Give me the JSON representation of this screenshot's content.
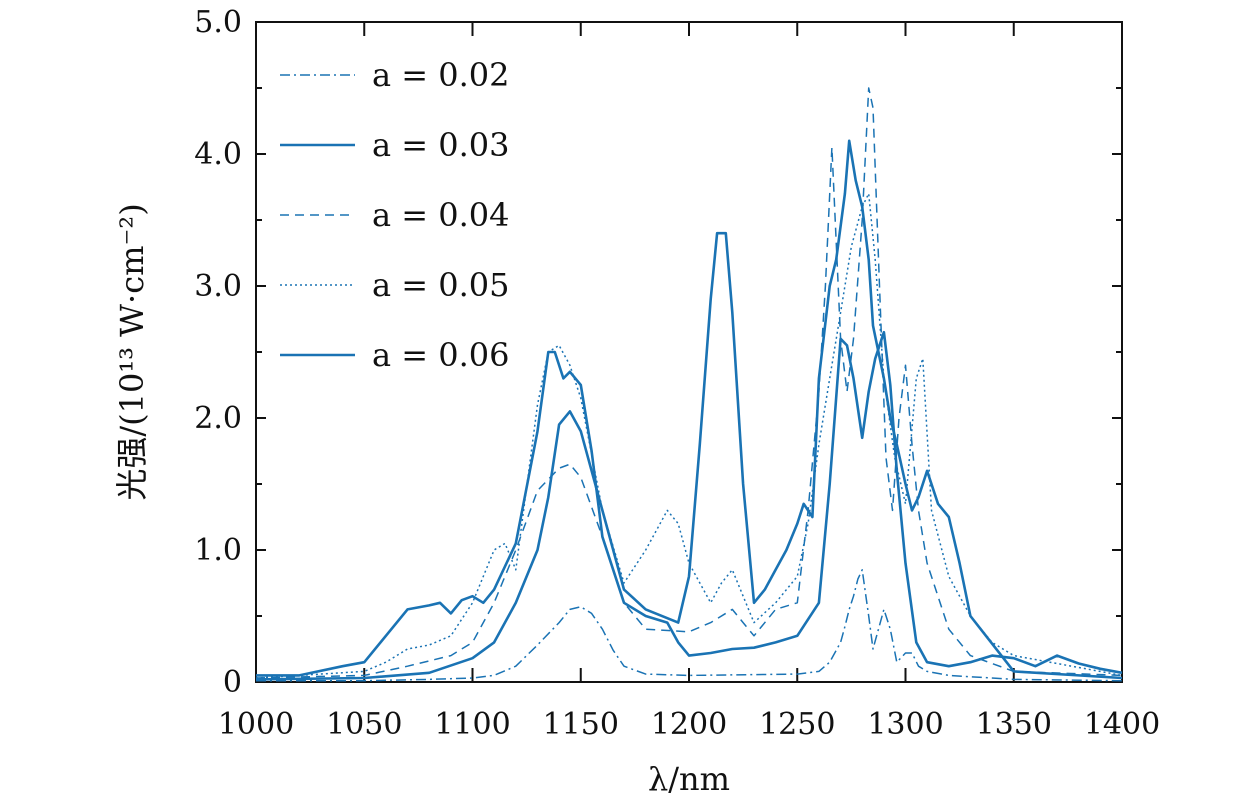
{
  "chart_data": {
    "type": "line",
    "xlabel": "λ/nm",
    "ylabel": "光强/(10¹³ W·cm⁻²)",
    "xlim": [
      1000,
      1400
    ],
    "ylim": [
      0,
      5
    ],
    "x_ticks": [
      1000,
      1050,
      1100,
      1150,
      1200,
      1250,
      1300,
      1350,
      1400
    ],
    "x_tick_labels": [
      "1000",
      "1050",
      "1100",
      "1150",
      "1200",
      "1250",
      "1300",
      "1350",
      "1400"
    ],
    "y_ticks": [
      0,
      1,
      2,
      3,
      4,
      5
    ],
    "y_tick_labels": [
      "0",
      "1.0",
      "2.0",
      "3.0",
      "4.0",
      "5.0"
    ],
    "grid": false,
    "legend_position": "top-left",
    "line_color": "#1a73b4",
    "series": [
      {
        "name": "a = 0.02",
        "style": "dash-dot",
        "x": [
          1000,
          1050,
          1080,
          1100,
          1110,
          1120,
          1130,
          1140,
          1145,
          1150,
          1155,
          1160,
          1165,
          1170,
          1180,
          1200,
          1250,
          1260,
          1265,
          1270,
          1272,
          1274,
          1276,
          1278,
          1280,
          1283,
          1285,
          1290,
          1293,
          1296,
          1300,
          1303,
          1306,
          1310,
          1320,
          1350,
          1400
        ],
        "y": [
          0.01,
          0.01,
          0.02,
          0.03,
          0.05,
          0.12,
          0.28,
          0.45,
          0.55,
          0.57,
          0.52,
          0.4,
          0.24,
          0.12,
          0.06,
          0.05,
          0.06,
          0.08,
          0.15,
          0.3,
          0.42,
          0.55,
          0.65,
          0.78,
          0.85,
          0.5,
          0.25,
          0.55,
          0.4,
          0.15,
          0.22,
          0.22,
          0.12,
          0.08,
          0.05,
          0.02,
          0.01
        ]
      },
      {
        "name": "a = 0.03",
        "style": "solid",
        "x": [
          1000,
          1050,
          1080,
          1100,
          1110,
          1120,
          1130,
          1135,
          1140,
          1145,
          1150,
          1160,
          1170,
          1180,
          1195,
          1200,
          1205,
          1210,
          1213,
          1217,
          1220,
          1225,
          1230,
          1235,
          1240,
          1245,
          1250,
          1253,
          1257,
          1260,
          1265,
          1268,
          1272,
          1274,
          1277,
          1280,
          1283,
          1285,
          1290,
          1293,
          1296,
          1300,
          1303,
          1306,
          1310,
          1315,
          1320,
          1325,
          1330,
          1350,
          1400
        ],
        "y": [
          0.02,
          0.03,
          0.07,
          0.18,
          0.3,
          0.6,
          1.0,
          1.4,
          1.95,
          2.05,
          1.9,
          1.3,
          0.7,
          0.55,
          0.45,
          0.8,
          1.8,
          2.9,
          3.4,
          3.4,
          2.8,
          1.5,
          0.6,
          0.7,
          0.85,
          1.0,
          1.2,
          1.35,
          1.25,
          2.3,
          3.0,
          3.2,
          3.7,
          4.1,
          3.8,
          3.6,
          3.2,
          2.7,
          2.3,
          2.0,
          1.8,
          1.5,
          1.3,
          1.4,
          1.6,
          1.35,
          1.25,
          0.9,
          0.5,
          0.08,
          0.03
        ]
      },
      {
        "name": "a = 0.04",
        "style": "dashed",
        "x": [
          1000,
          1050,
          1070,
          1090,
          1100,
          1110,
          1120,
          1130,
          1140,
          1145,
          1150,
          1160,
          1170,
          1180,
          1200,
          1210,
          1220,
          1225,
          1230,
          1240,
          1250,
          1255,
          1260,
          1263,
          1266,
          1270,
          1273,
          1276,
          1280,
          1283,
          1285,
          1288,
          1291,
          1294,
          1297,
          1300,
          1303,
          1306,
          1310,
          1320,
          1330,
          1350,
          1400
        ],
        "y": [
          0.03,
          0.05,
          0.12,
          0.2,
          0.3,
          0.6,
          1.0,
          1.45,
          1.62,
          1.65,
          1.55,
          1.1,
          0.6,
          0.4,
          0.38,
          0.45,
          0.55,
          0.45,
          0.35,
          0.55,
          0.6,
          1.3,
          2.2,
          3.0,
          4.05,
          2.6,
          2.2,
          2.6,
          3.5,
          4.5,
          4.35,
          3.0,
          1.7,
          1.3,
          2.0,
          2.4,
          1.8,
          1.3,
          0.9,
          0.4,
          0.2,
          0.08,
          0.05
        ]
      },
      {
        "name": "a = 0.05",
        "style": "dotted",
        "x": [
          1000,
          1050,
          1060,
          1070,
          1080,
          1090,
          1100,
          1110,
          1115,
          1120,
          1130,
          1135,
          1140,
          1145,
          1150,
          1160,
          1170,
          1180,
          1190,
          1195,
          1200,
          1210,
          1215,
          1220,
          1230,
          1240,
          1250,
          1255,
          1260,
          1265,
          1270,
          1275,
          1280,
          1283,
          1286,
          1290,
          1295,
          1300,
          1305,
          1308,
          1312,
          1320,
          1330,
          1340,
          1350,
          1400
        ],
        "y": [
          0.03,
          0.08,
          0.15,
          0.25,
          0.28,
          0.35,
          0.6,
          1.0,
          1.05,
          0.85,
          2.1,
          2.5,
          2.55,
          2.4,
          2.15,
          1.3,
          0.75,
          1.0,
          1.3,
          1.2,
          0.9,
          0.6,
          0.75,
          0.85,
          0.45,
          0.6,
          0.8,
          1.2,
          1.8,
          2.3,
          2.8,
          3.3,
          3.6,
          3.7,
          3.2,
          2.3,
          1.7,
          1.35,
          2.3,
          2.45,
          1.3,
          0.8,
          0.5,
          0.3,
          0.2,
          0.05
        ]
      },
      {
        "name": "a = 0.06",
        "style": "solid",
        "x": [
          1000,
          1020,
          1040,
          1050,
          1060,
          1070,
          1080,
          1085,
          1090,
          1095,
          1100,
          1105,
          1110,
          1120,
          1130,
          1135,
          1138,
          1142,
          1145,
          1150,
          1155,
          1160,
          1170,
          1180,
          1190,
          1195,
          1200,
          1210,
          1220,
          1230,
          1240,
          1250,
          1260,
          1265,
          1270,
          1273,
          1276,
          1280,
          1283,
          1286,
          1290,
          1293,
          1296,
          1300,
          1305,
          1310,
          1320,
          1330,
          1340,
          1350,
          1360,
          1370,
          1380,
          1390,
          1400
        ],
        "y": [
          0.05,
          0.05,
          0.12,
          0.15,
          0.35,
          0.55,
          0.58,
          0.6,
          0.52,
          0.62,
          0.65,
          0.6,
          0.7,
          1.05,
          1.9,
          2.5,
          2.5,
          2.3,
          2.35,
          2.25,
          1.75,
          1.1,
          0.6,
          0.5,
          0.45,
          0.3,
          0.2,
          0.22,
          0.25,
          0.26,
          0.3,
          0.35,
          0.6,
          1.5,
          2.6,
          2.55,
          2.3,
          1.85,
          2.2,
          2.45,
          2.65,
          2.25,
          1.6,
          0.9,
          0.3,
          0.15,
          0.12,
          0.15,
          0.2,
          0.18,
          0.12,
          0.2,
          0.14,
          0.1,
          0.07
        ]
      }
    ]
  }
}
